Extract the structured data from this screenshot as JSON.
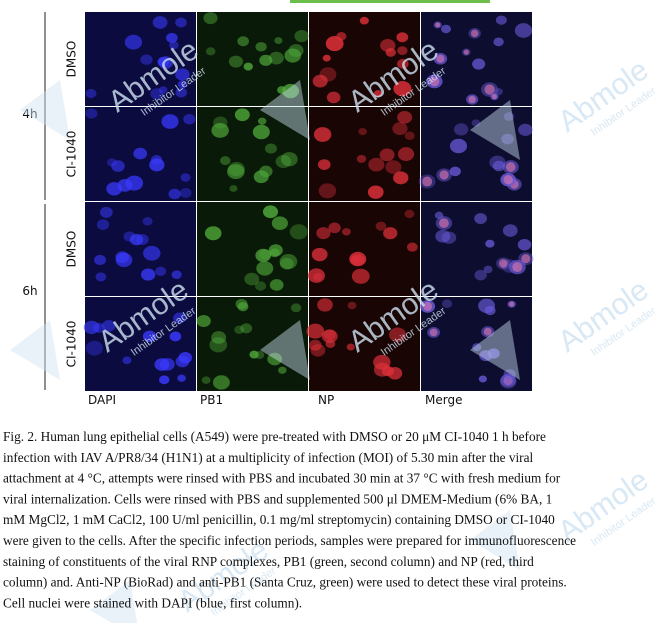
{
  "figure": {
    "time_labels": [
      "4h",
      "6h"
    ],
    "row_labels": [
      "DMSO",
      "CI-1040",
      "DMSO",
      "CI-1040"
    ],
    "column_labels": [
      "DAPI",
      "PB1",
      "NP",
      "Merge"
    ]
  },
  "caption": {
    "lines": [
      "Fig. 2. Human lung epithelial cells (A549) were pre-treated with DMSO or 20 μM CI-1040 1 h before",
      "infection with IAV A/PR8/34 (H1N1) at a multiplicity of infection (MOI) of 5.30 min after the viral",
      "attachment at 4 °C, attempts were rinsed with PBS and incubated 30 min at 37 °C with fresh medium for",
      "viral internalization. Cells were rinsed with PBS and supplemented 500 μl DMEM-Medium (6% BA, 1",
      "mM MgCl2, 1 mM CaCl2, 100 U/ml penicillin, 0.1 mg/ml streptomycin) containing DMSO or CI-1040",
      "were given to the cells. After the specific infection periods, samples were prepared for immunofluorescence",
      "staining of constituents of the viral RNP complexes, PB1 (green, second column) and NP (red, third",
      "column) and. Anti-NP (BioRad) and anti-PB1 (Santa Cruz, green) were used to detect these viral proteins.",
      "Cell nuclei were stained with DAPI (blue, first column)."
    ]
  },
  "watermark": {
    "brand": "Abmole",
    "tagline": "Inhibitor Leader"
  }
}
